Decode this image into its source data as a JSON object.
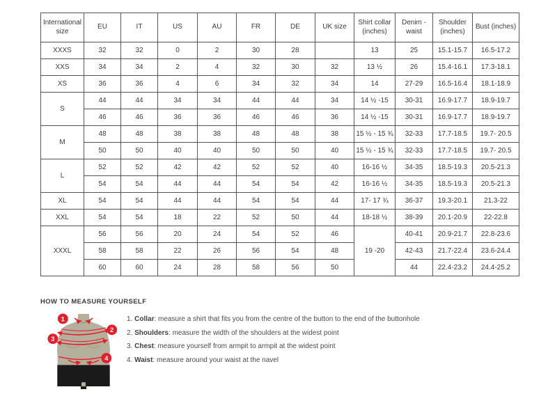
{
  "colors": {
    "accent_red": "#e41e2d",
    "mannequin_body": "#b4b09c",
    "mannequin_shorts": "#1a1a1a",
    "table_border": "#555555",
    "text": "#3a3a3a"
  },
  "size_table": {
    "headers": [
      "International size",
      "EU",
      "IT",
      "US",
      "AU",
      "FR",
      "DE",
      "UK size",
      "Shirt collar (inches)",
      "Denim - waist",
      "Shoulder (inches)",
      "Bust (inches)"
    ],
    "rows": [
      [
        "XXXS",
        "32",
        "32",
        "0",
        "2",
        "30",
        "28",
        "",
        "13",
        "25",
        "15.1-15.7",
        "16.5-17.2"
      ],
      [
        "XXS",
        "34",
        "34",
        "2",
        "4",
        "32",
        "30",
        "32",
        "13 ½",
        "26",
        "15.4-16.1",
        "17.3-18.1"
      ],
      [
        "XS",
        "36",
        "36",
        "4",
        "6",
        "34",
        "32",
        "34",
        "14",
        "27-29",
        "16.5-16.4",
        "18.1-18.9"
      ],
      [
        {
          "t": "S",
          "rs": 2
        },
        "44",
        "44",
        "34",
        "34",
        "44",
        "44",
        "34",
        "14 ½ -15",
        "30-31",
        "16.9-17.7",
        "18.9-19.7"
      ],
      [
        null,
        "46",
        "46",
        "36",
        "36",
        "46",
        "46",
        "36",
        "14 ½ -15",
        "30-31",
        "16.9-17.7",
        "18.9-19.7"
      ],
      [
        {
          "t": "M",
          "rs": 2
        },
        "48",
        "48",
        "38",
        "38",
        "48",
        "48",
        "38",
        "15 ½ - 15 ¾",
        "32-33",
        "17.7-18.5",
        "19.7- 20.5"
      ],
      [
        null,
        "50",
        "50",
        "40",
        "40",
        "50",
        "50",
        "40",
        "15 ½ - 15 ¾",
        "32-33",
        "17.7-18.5",
        "19.7- 20.5"
      ],
      [
        {
          "t": "L",
          "rs": 2
        },
        "52",
        "52",
        "42",
        "42",
        "52",
        "52",
        "40",
        "16-16 ½",
        "34-35",
        "18.5-19.3",
        "20.5-21.3"
      ],
      [
        null,
        "54",
        "54",
        "44",
        "44",
        "54",
        "54",
        "42",
        "16-16 ½",
        "34-35",
        "18.5-19.3",
        "20.5-21.3"
      ],
      [
        "XL",
        "54",
        "54",
        "44",
        "44",
        "54",
        "54",
        "44",
        "17- 17 ¾",
        "36-37",
        "19.3-20.1",
        "21.3-22"
      ],
      [
        "XXL",
        "54",
        "54",
        "18",
        "22",
        "52",
        "50",
        "44",
        "18-18 ½",
        "38-39",
        "20.1-20.9",
        "22-22.8"
      ],
      [
        {
          "t": "XXXL",
          "rs": 3
        },
        "56",
        "56",
        "20",
        "24",
        "54",
        "52",
        "46",
        {
          "t": "19 -20",
          "rs": 3
        },
        "40-41",
        "20.9-21.7",
        "22.8-23.6"
      ],
      [
        null,
        "58",
        "58",
        "22",
        "26",
        "56",
        "54",
        "48",
        null,
        "42-43",
        "21.7-22.4",
        "23.6-24.4"
      ],
      [
        null,
        "60",
        "60",
        "24",
        "28",
        "58",
        "56",
        "50",
        null,
        "44",
        "22.4-23.2",
        "24.4-25.2"
      ]
    ]
  },
  "measure": {
    "heading": "HOW TO MEASURE YOURSELF",
    "figure_markers": [
      "1",
      "2",
      "3",
      "4"
    ],
    "steps": [
      {
        "num": "1.",
        "label": "Collar",
        "text": ": measure a shirt that fits you from the centre of the button to the end of the buttonhole"
      },
      {
        "num": "2.",
        "label": "Shoulders",
        "text": ": measure the width of the shoulders at the widest point"
      },
      {
        "num": "3.",
        "label": "Chest",
        "text": ": measure yourself from armpit to armpit at the widest point"
      },
      {
        "num": "4.",
        "label": "Waist",
        "text": ": measure around your waist at the navel"
      }
    ]
  }
}
